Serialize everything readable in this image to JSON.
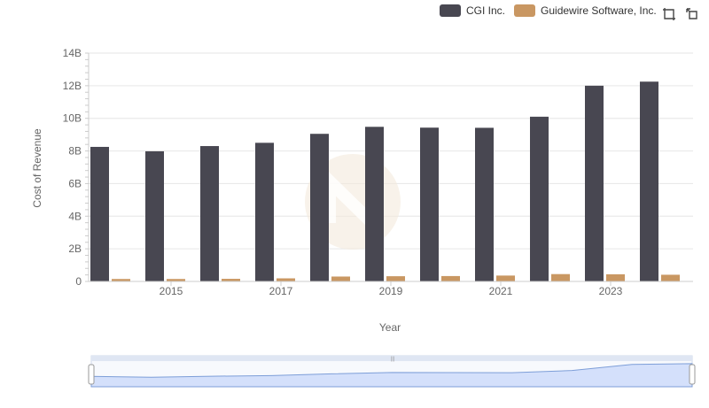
{
  "chart_data": {
    "type": "bar",
    "title": "",
    "xlabel": "Year",
    "ylabel": "Cost of Revenue",
    "x_tick_labels": [
      "2015",
      "2017",
      "2019",
      "2021",
      "2023"
    ],
    "categories": [
      "2014",
      "2015",
      "2016",
      "2017",
      "2018",
      "2019",
      "2020",
      "2021",
      "2022",
      "2023",
      "2024"
    ],
    "ylim": [
      0,
      14000000000
    ],
    "y_ticks": [
      {
        "value": 0,
        "label": "0"
      },
      {
        "value": 2000000000,
        "label": "2B"
      },
      {
        "value": 4000000000,
        "label": "4B"
      },
      {
        "value": 6000000000,
        "label": "6B"
      },
      {
        "value": 8000000000,
        "label": "8B"
      },
      {
        "value": 10000000000,
        "label": "10B"
      },
      {
        "value": 12000000000,
        "label": "12B"
      },
      {
        "value": 14000000000,
        "label": "14B"
      }
    ],
    "grid": true,
    "legend_position": "top-right",
    "series": [
      {
        "name": "CGI Inc.",
        "color": "#484751",
        "values": [
          8250000000,
          7980000000,
          8300000000,
          8500000000,
          9050000000,
          9480000000,
          9430000000,
          9420000000,
          10100000000,
          12000000000,
          12250000000
        ]
      },
      {
        "name": "Guidewire Software, Inc.",
        "color": "#c99762",
        "values": [
          150000000,
          150000000,
          160000000,
          190000000,
          300000000,
          320000000,
          330000000,
          360000000,
          450000000,
          440000000,
          410000000
        ]
      }
    ]
  },
  "toolbar": {
    "icons": [
      "expand-icon",
      "restore-icon"
    ]
  }
}
